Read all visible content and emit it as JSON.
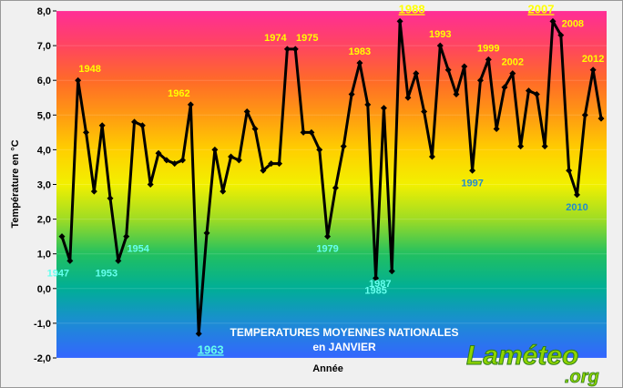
{
  "chart_data": {
    "type": "line",
    "title": [
      "TEMPERATURES MOYENNES NATIONALES",
      "en JANVIER"
    ],
    "ylabel": "Température en °C",
    "xlabel": "Année",
    "categories": [
      null,
      "1947",
      "1948",
      null,
      null,
      null,
      null,
      "1953",
      "1954",
      null,
      null,
      null,
      null,
      null,
      null,
      null,
      "1962",
      "1963",
      null,
      null,
      null,
      null,
      null,
      null,
      null,
      null,
      null,
      null,
      "1974",
      "1975",
      null,
      null,
      null,
      "1979",
      null,
      null,
      null,
      "1983",
      null,
      "1985",
      null,
      "1987",
      "1988",
      null,
      null,
      null,
      null,
      "1993",
      null,
      null,
      null,
      "1997",
      null,
      "1999",
      null,
      null,
      "2002",
      null,
      null,
      null,
      null,
      "2007",
      "2008",
      null,
      "2010",
      null,
      "2012",
      null
    ],
    "values": [
      1.5,
      0.8,
      6.0,
      4.5,
      2.8,
      4.7,
      2.6,
      0.8,
      1.5,
      4.8,
      4.7,
      3.0,
      3.9,
      3.7,
      3.6,
      3.7,
      5.3,
      -1.3,
      1.6,
      4.0,
      2.8,
      3.8,
      3.7,
      5.1,
      4.6,
      3.4,
      3.6,
      3.6,
      6.9,
      6.9,
      4.5,
      4.5,
      4.0,
      1.5,
      2.9,
      4.1,
      5.6,
      6.5,
      5.3,
      0.3,
      5.2,
      0.5,
      7.7,
      5.5,
      6.2,
      5.1,
      3.8,
      7.0,
      6.3,
      5.6,
      6.4,
      3.4,
      6.0,
      6.6,
      4.6,
      5.8,
      6.2,
      4.1,
      5.7,
      5.6,
      4.1,
      7.7,
      7.3,
      3.4,
      2.7,
      5.0,
      6.3,
      4.9
    ],
    "color": "#000000",
    "high_label_color": "#ffff00",
    "low_label_color": "#66ffee",
    "mid_label_color": "#1f8ad0",
    "ylim": [
      -2,
      8
    ],
    "yticks": [
      {
        "value": -2,
        "label": "-2,0"
      },
      {
        "value": -1,
        "label": "-1,0"
      },
      {
        "value": 0,
        "label": "0,0"
      },
      {
        "value": 1,
        "label": "1,0"
      },
      {
        "value": 2,
        "label": "2,0"
      },
      {
        "value": 3,
        "label": "3,0"
      },
      {
        "value": 4,
        "label": "4,0"
      },
      {
        "value": 5,
        "label": "5,0"
      },
      {
        "value": 6,
        "label": "6,0"
      },
      {
        "value": 7,
        "label": "7,0"
      },
      {
        "value": 8,
        "label": "8,0"
      }
    ],
    "grid": true
  },
  "logo": {
    "name": "Laméteo",
    "domain": ".org"
  }
}
